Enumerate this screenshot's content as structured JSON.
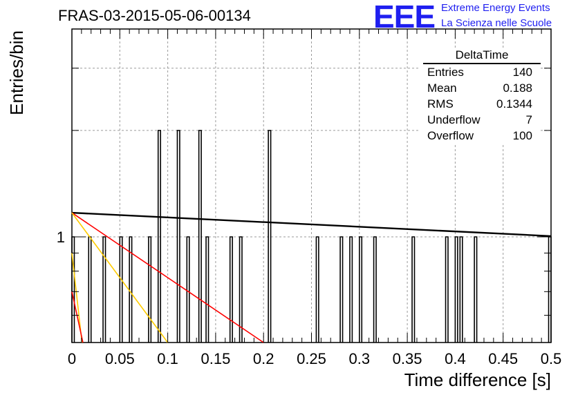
{
  "header": {
    "title": "FRAS-03-2015-05-06-00134",
    "logo_text": "EEE",
    "logo_line1": "Extreme Energy Events",
    "logo_line2": "La Scienza nelle Scuole"
  },
  "stats": {
    "name": "DeltaTime",
    "rows": [
      {
        "label": "Entries",
        "value": "140"
      },
      {
        "label": "Mean",
        "value": "0.188"
      },
      {
        "label": "RMS",
        "value": "0.1344"
      },
      {
        "label": "Underflow",
        "value": "7"
      },
      {
        "label": "Overflow",
        "value": "100"
      }
    ]
  },
  "chart_data": {
    "type": "bar",
    "xlabel": "Time difference [s]",
    "ylabel": "Entries/bin",
    "xlim": [
      0,
      0.5
    ],
    "log_y": true,
    "grid": true,
    "x_tick_labels": [
      "0",
      "0.05",
      "0.1",
      "0.15",
      "0.2",
      "0.25",
      "0.3",
      "0.35",
      "0.4",
      "0.45",
      "0.5"
    ],
    "x_ticks": [
      0,
      0.05,
      0.1,
      0.15,
      0.2,
      0.25,
      0.3,
      0.35,
      0.4,
      0.45,
      0.5
    ],
    "y_tick_labels": [
      "1"
    ],
    "bin_width": 0.0025,
    "bins": [
      {
        "x": 0.0,
        "count": 1
      },
      {
        "x": 0.0175,
        "count": 1
      },
      {
        "x": 0.0325,
        "count": 1
      },
      {
        "x": 0.05,
        "count": 1
      },
      {
        "x": 0.06,
        "count": 1
      },
      {
        "x": 0.08,
        "count": 1
      },
      {
        "x": 0.09,
        "count": 2
      },
      {
        "x": 0.11,
        "count": 2
      },
      {
        "x": 0.12,
        "count": 1
      },
      {
        "x": 0.1325,
        "count": 2
      },
      {
        "x": 0.14,
        "count": 1
      },
      {
        "x": 0.165,
        "count": 1
      },
      {
        "x": 0.175,
        "count": 1
      },
      {
        "x": 0.205,
        "count": 2
      },
      {
        "x": 0.255,
        "count": 1
      },
      {
        "x": 0.28,
        "count": 1
      },
      {
        "x": 0.29,
        "count": 1
      },
      {
        "x": 0.3,
        "count": 1
      },
      {
        "x": 0.315,
        "count": 1
      },
      {
        "x": 0.355,
        "count": 1
      },
      {
        "x": 0.39,
        "count": 1
      },
      {
        "x": 0.4,
        "count": 1
      },
      {
        "x": 0.405,
        "count": 1
      },
      {
        "x": 0.42,
        "count": 1
      },
      {
        "x": 0.4975,
        "count": 1
      }
    ],
    "fit_lines": [
      {
        "color": "#000000",
        "x": [
          0,
          0.5
        ],
        "y": [
          1.17,
          1.005
        ]
      },
      {
        "color": "#ff0000",
        "x": [
          0,
          0.2
        ],
        "y": [
          1.17,
          0.5
        ]
      },
      {
        "color": "#ffcc00",
        "x": [
          0,
          0.1
        ],
        "y": [
          1.17,
          0.5
        ]
      },
      {
        "color": "#ffcc00",
        "x": [
          0,
          0.0105
        ],
        "y": [
          0.9,
          0.5
        ]
      },
      {
        "color": "#ff0000",
        "x": [
          0,
          0.0115
        ],
        "y": [
          0.7,
          0.5
        ]
      }
    ]
  }
}
